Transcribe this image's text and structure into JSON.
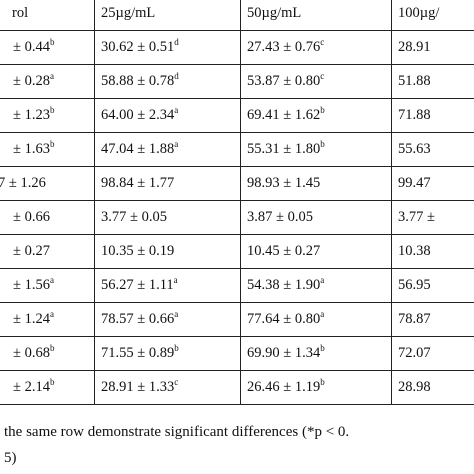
{
  "table": {
    "headers": [
      "rol",
      "25µg/mL",
      "50µg/mL",
      "100µg/"
    ],
    "rows": [
      [
        {
          "v": "± 0.44",
          "s": "b"
        },
        {
          "v": "30.62 ± 0.51",
          "s": "d"
        },
        {
          "v": "27.43 ± 0.76",
          "s": "c"
        },
        {
          "v": "28.91",
          "s": ""
        }
      ],
      [
        {
          "v": "± 0.28",
          "s": "a"
        },
        {
          "v": "58.88 ± 0.78",
          "s": "d"
        },
        {
          "v": "53.87 ± 0.80",
          "s": "c"
        },
        {
          "v": "51.88",
          "s": ""
        }
      ],
      [
        {
          "v": "± 1.23",
          "s": "b"
        },
        {
          "v": "64.00 ± 2.34",
          "s": "a"
        },
        {
          "v": "69.41 ± 1.62",
          "s": "b"
        },
        {
          "v": "71.88",
          "s": ""
        }
      ],
      [
        {
          "v": "± 1.63",
          "s": "b"
        },
        {
          "v": "47.04 ± 1.88",
          "s": "a"
        },
        {
          "v": "55.31 ± 1.80",
          "s": "b"
        },
        {
          "v": "55.63",
          "s": ""
        }
      ],
      [
        {
          "v": "7 ± 1.26",
          "s": ""
        },
        {
          "v": "98.84 ± 1.77",
          "s": ""
        },
        {
          "v": "98.93 ± 1.45",
          "s": ""
        },
        {
          "v": "99.47",
          "s": ""
        }
      ],
      [
        {
          "v": "± 0.66",
          "s": ""
        },
        {
          "v": "3.77 ± 0.05",
          "s": ""
        },
        {
          "v": "3.87 ± 0.05",
          "s": ""
        },
        {
          "v": "3.77 ±",
          "s": ""
        }
      ],
      [
        {
          "v": "± 0.27",
          "s": ""
        },
        {
          "v": "10.35 ± 0.19",
          "s": ""
        },
        {
          "v": "10.45 ± 0.27",
          "s": ""
        },
        {
          "v": "10.38",
          "s": ""
        }
      ],
      [
        {
          "v": "± 1.56",
          "s": "a"
        },
        {
          "v": "56.27 ± 1.11",
          "s": "a"
        },
        {
          "v": "54.38 ± 1.90",
          "s": "a"
        },
        {
          "v": "56.95",
          "s": ""
        }
      ],
      [
        {
          "v": "± 1.24",
          "s": "a"
        },
        {
          "v": "78.57 ± 0.66",
          "s": "a"
        },
        {
          "v": "77.64 ± 0.80",
          "s": "a"
        },
        {
          "v": "78.87",
          "s": ""
        }
      ],
      [
        {
          "v": "± 0.68",
          "s": "b"
        },
        {
          "v": "71.55 ± 0.89",
          "s": "b"
        },
        {
          "v": "69.90 ± 1.34",
          "s": "b"
        },
        {
          "v": "72.07",
          "s": ""
        }
      ],
      [
        {
          "v": "± 2.14",
          "s": "b"
        },
        {
          "v": "28.91 ± 1.33",
          "s": "c"
        },
        {
          "v": "26.46 ± 1.19",
          "s": "b"
        },
        {
          "v": "28.98",
          "s": ""
        }
      ]
    ]
  },
  "footnote": {
    "line1": "the same row demonstrate significant differences (*p < 0.",
    "line2": "5)"
  }
}
